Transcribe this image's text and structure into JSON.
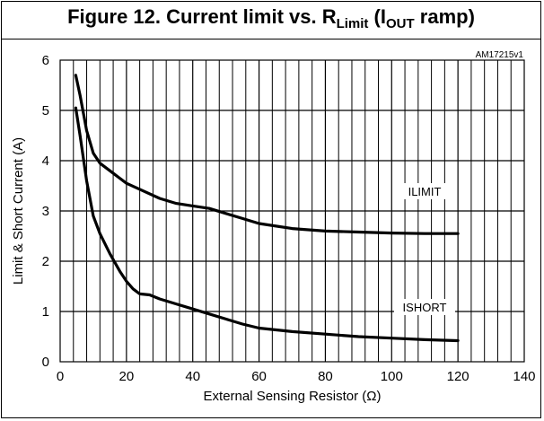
{
  "figure": {
    "title_main": "Figure 12. Current limit vs. R",
    "title_sub1": "Limit",
    "title_mid": " (I",
    "title_sub2": "OUT",
    "title_end": " ramp)",
    "code": "AM17215v1"
  },
  "chart_data": {
    "type": "line",
    "xlabel": "External Sensing Resistor (Ω)",
    "ylabel": "Limit & Short Current (A)",
    "xlim": [
      0,
      140
    ],
    "ylim": [
      0,
      6
    ],
    "x_ticks": [
      0,
      20,
      40,
      60,
      80,
      100,
      120,
      140
    ],
    "y_ticks": [
      0,
      1,
      2,
      3,
      4,
      5,
      6
    ],
    "minor_x_step": 4,
    "grid": true,
    "series": [
      {
        "name": "ILIMIT",
        "x": [
          4.7,
          6,
          8,
          10,
          12,
          15,
          18,
          20,
          25,
          30,
          35,
          40,
          45,
          50,
          55,
          60,
          70,
          80,
          90,
          100,
          110,
          120
        ],
        "y": [
          5.7,
          5.3,
          4.6,
          4.15,
          3.95,
          3.8,
          3.65,
          3.55,
          3.4,
          3.25,
          3.15,
          3.1,
          3.05,
          2.95,
          2.85,
          2.75,
          2.65,
          2.6,
          2.58,
          2.56,
          2.55,
          2.55
        ]
      },
      {
        "name": "ISHORT",
        "x": [
          4.7,
          6,
          8,
          10,
          12,
          15,
          18,
          20,
          22,
          24,
          27,
          30,
          35,
          40,
          45,
          50,
          55,
          60,
          70,
          80,
          90,
          100,
          110,
          120
        ],
        "y": [
          5.05,
          4.5,
          3.6,
          2.9,
          2.55,
          2.15,
          1.8,
          1.6,
          1.45,
          1.35,
          1.33,
          1.25,
          1.15,
          1.05,
          0.95,
          0.85,
          0.75,
          0.67,
          0.6,
          0.55,
          0.5,
          0.47,
          0.44,
          0.42
        ]
      }
    ],
    "annotations": [
      "ILIMIT",
      "ISHORT"
    ]
  }
}
